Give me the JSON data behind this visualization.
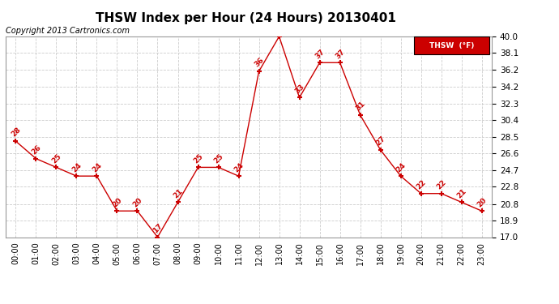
{
  "title": "THSW Index per Hour (24 Hours) 20130401",
  "copyright": "Copyright 2013 Cartronics.com",
  "legend_label": "THSW  (°F)",
  "hours": [
    0,
    1,
    2,
    3,
    4,
    5,
    6,
    7,
    8,
    9,
    10,
    11,
    12,
    13,
    14,
    15,
    16,
    17,
    18,
    19,
    20,
    21,
    22,
    23
  ],
  "x_labels": [
    "00:00",
    "01:00",
    "02:00",
    "03:00",
    "04:00",
    "05:00",
    "06:00",
    "07:00",
    "08:00",
    "09:00",
    "10:00",
    "11:00",
    "12:00",
    "13:00",
    "14:00",
    "15:00",
    "16:00",
    "17:00",
    "18:00",
    "19:00",
    "20:00",
    "21:00",
    "22:00",
    "23:00"
  ],
  "values": [
    28,
    26,
    25,
    24,
    24,
    20,
    20,
    17,
    21,
    25,
    25,
    24,
    36,
    40,
    33,
    37,
    37,
    31,
    27,
    24,
    22,
    22,
    21,
    20
  ],
  "ylim_min": 17.0,
  "ylim_max": 40.0,
  "yticks": [
    17.0,
    18.9,
    20.8,
    22.8,
    24.7,
    26.6,
    28.5,
    30.4,
    32.3,
    34.2,
    36.2,
    38.1,
    40.0
  ],
  "line_color": "#cc0000",
  "marker_color": "#cc0000",
  "label_color": "#cc0000",
  "bg_color": "#ffffff",
  "grid_color": "#cccccc",
  "title_fontsize": 11,
  "copyright_fontsize": 7,
  "label_fontsize": 6.5,
  "ytick_fontsize": 7.5,
  "xtick_fontsize": 7
}
